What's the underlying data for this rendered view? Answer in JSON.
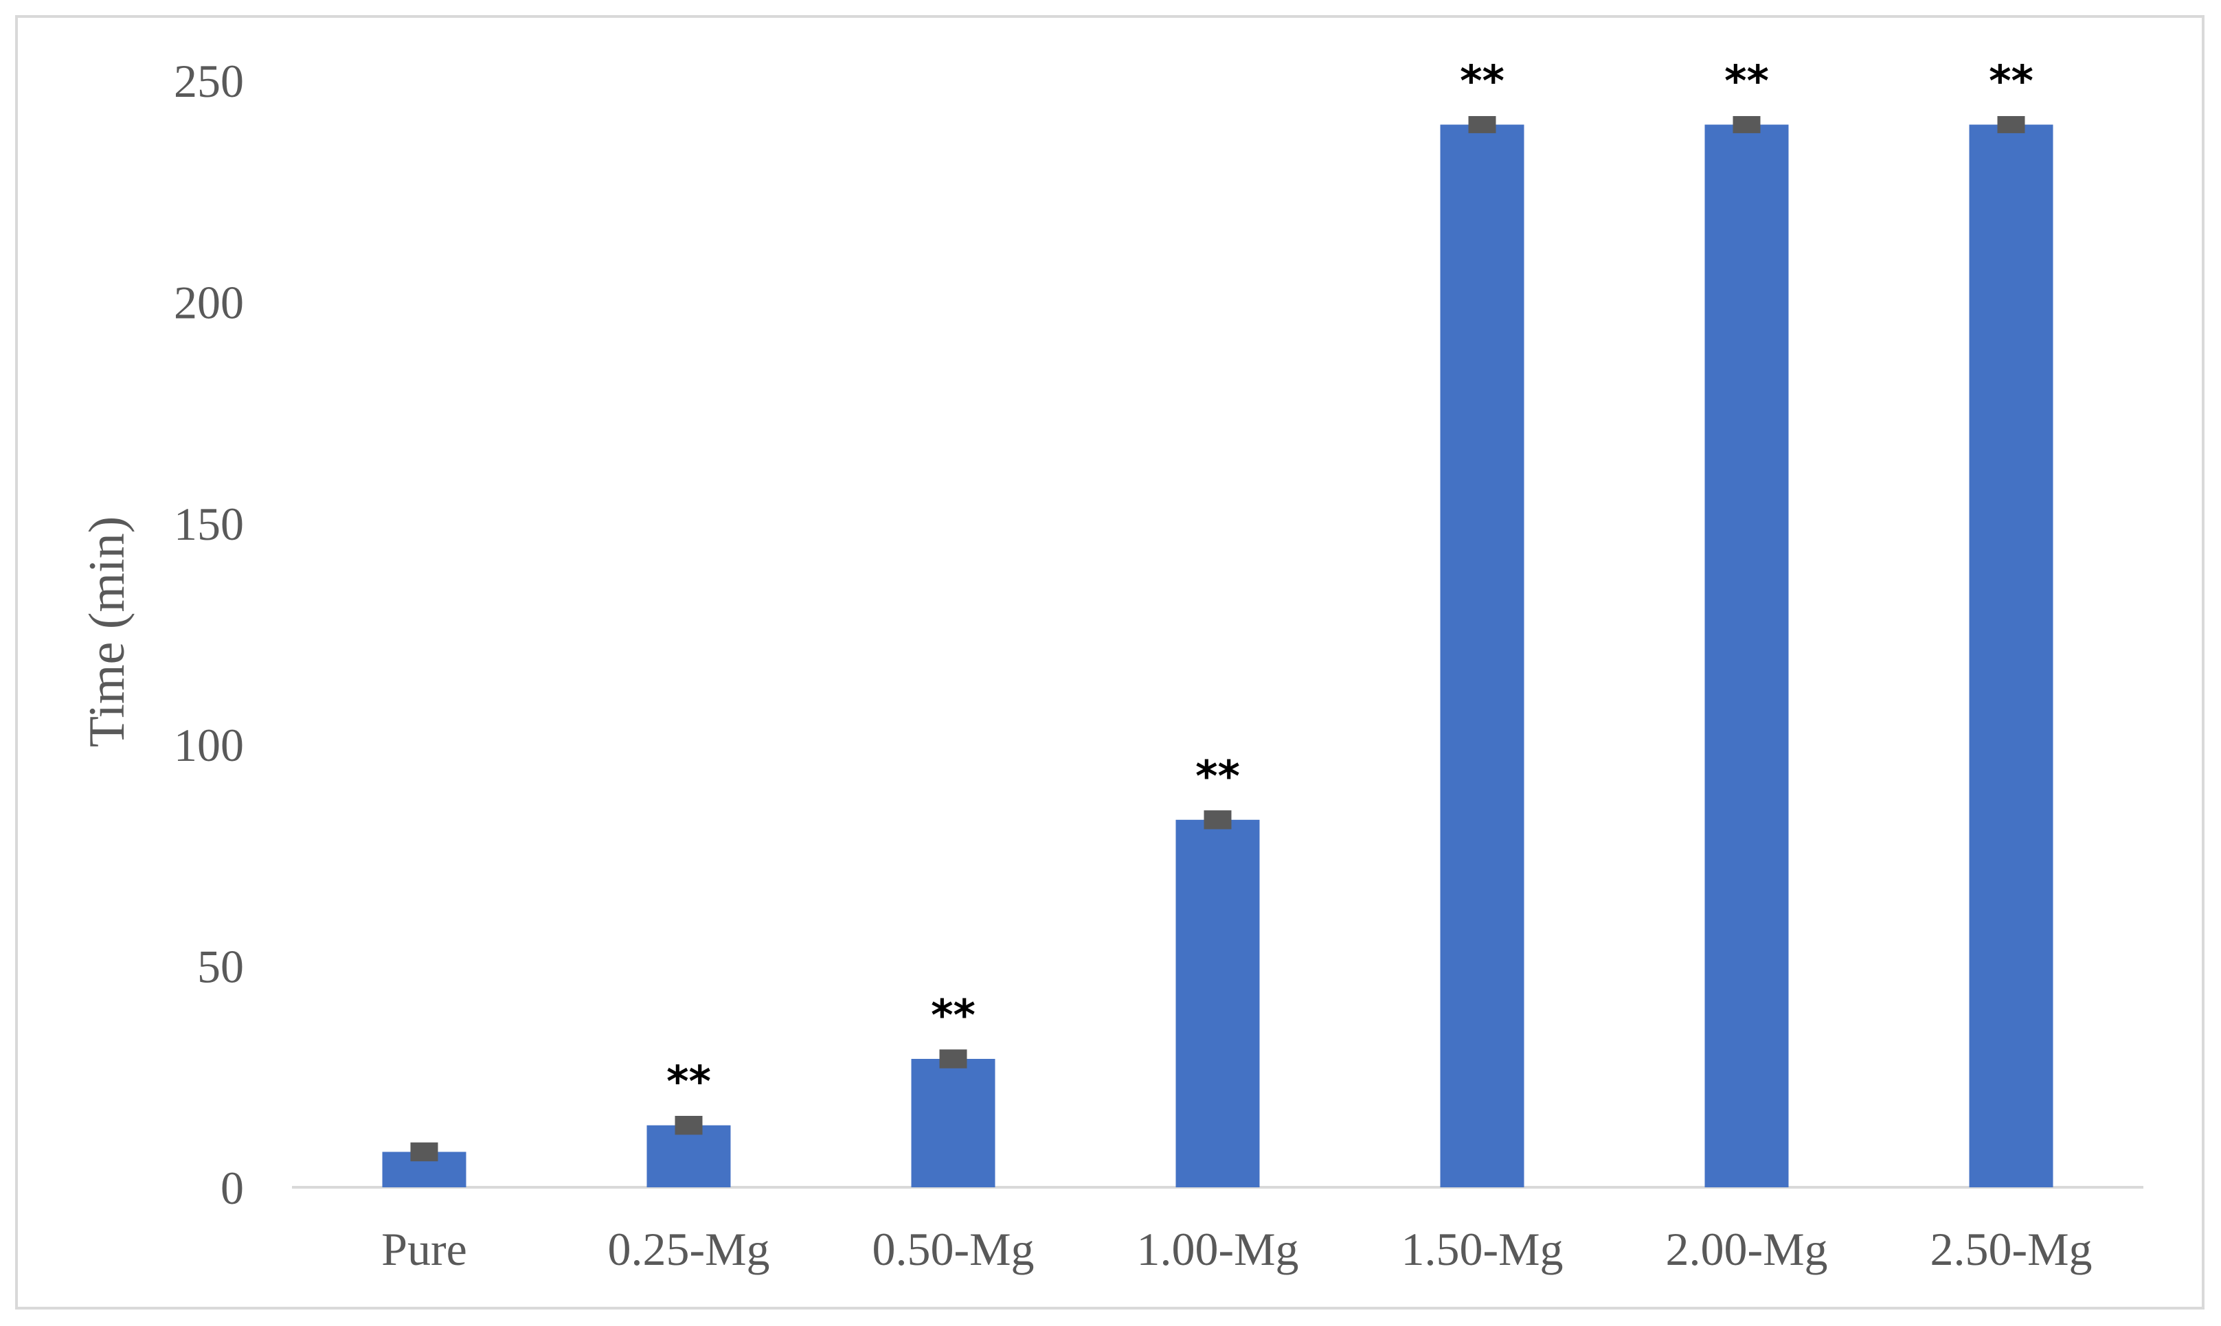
{
  "chart_data": {
    "type": "bar",
    "title": "",
    "xlabel": "",
    "ylabel": "Time (min)",
    "categories": [
      "Pure",
      "0.25-Mg",
      "0.50-Mg",
      "1.00-Mg",
      "1.50-Mg",
      "2.00-Mg",
      "2.50-Mg"
    ],
    "values": [
      8,
      14,
      29,
      83,
      240,
      240,
      240
    ],
    "error": [
      1.2,
      1.2,
      1.2,
      1.2,
      1.0,
      1.0,
      1.0
    ],
    "significance": [
      "",
      "**",
      "**",
      "**",
      "**",
      "**",
      "**"
    ],
    "ylim": [
      0,
      250
    ],
    "yticks": [
      0,
      50,
      100,
      150,
      200,
      250
    ],
    "grid": false,
    "legend": "none",
    "bar_color": "#4472c4",
    "errorbar_color": "#595959",
    "axis_color": "#d9d9d9"
  }
}
